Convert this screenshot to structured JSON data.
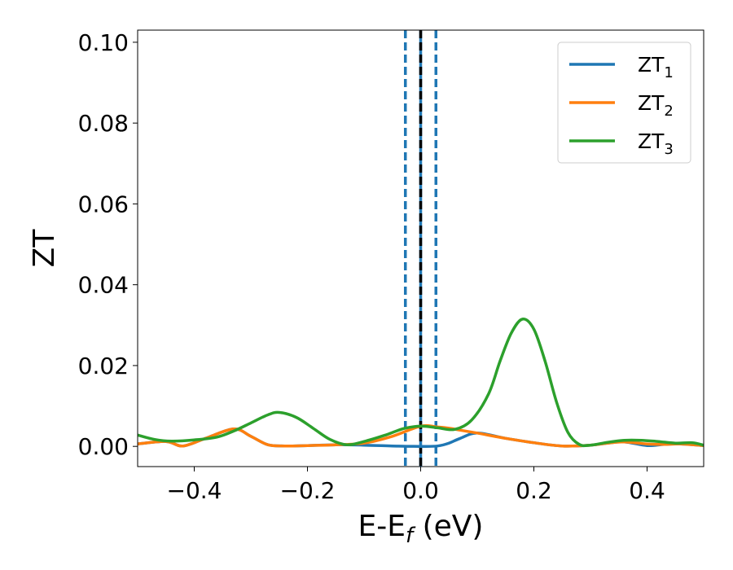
{
  "chart_data": {
    "type": "line",
    "xlabel": "E-E",
    "xlabel_sub": "f",
    "xlabel_unit": " (eV)",
    "ylabel": "ZT",
    "xlim": [
      -0.5,
      0.5
    ],
    "ylim": [
      -0.005,
      0.103
    ],
    "xticks": [
      -0.4,
      -0.2,
      0.0,
      0.2,
      0.4
    ],
    "xtick_labels": [
      "−0.4",
      "−0.2",
      "0.0",
      "0.2",
      "0.4"
    ],
    "yticks": [
      0.0,
      0.02,
      0.04,
      0.06,
      0.08,
      0.1
    ],
    "ytick_labels": [
      "0.00",
      "0.02",
      "0.04",
      "0.06",
      "0.08",
      "0.10"
    ],
    "grid": false,
    "legend_position": "top-right",
    "vertical_lines": [
      {
        "x": -0.027,
        "style": "dashed",
        "color": "#1f77b4"
      },
      {
        "x": 0.0,
        "style": "solid",
        "color": "#1f77b4"
      },
      {
        "x": 0.0,
        "style": "dashed",
        "color": "#000000"
      },
      {
        "x": 0.027,
        "style": "dashed",
        "color": "#1f77b4"
      }
    ],
    "series": [
      {
        "name": "ZT",
        "name_sub": "1",
        "color": "#1f77b4",
        "x": [
          -0.5,
          -0.45,
          -0.42,
          -0.38,
          -0.33,
          -0.3,
          -0.27,
          -0.24,
          -0.2,
          -0.15,
          -0.1,
          -0.05,
          0.0,
          0.03,
          0.05,
          0.07,
          0.1,
          0.15,
          0.2,
          0.25,
          0.3,
          0.33,
          0.36,
          0.4,
          0.43,
          0.46,
          0.5
        ],
        "y": [
          0.0006,
          0.0012,
          0.0001,
          0.002,
          0.0043,
          0.0025,
          0.0004,
          0.0001,
          0.0002,
          0.0004,
          0.0003,
          0.0001,
          0.0,
          0.0001,
          0.0008,
          0.002,
          0.0033,
          0.002,
          0.0009,
          0.0001,
          0.0003,
          0.0008,
          0.0011,
          0.0002,
          0.0005,
          0.0006,
          0.0002
        ]
      },
      {
        "name": "ZT",
        "name_sub": "2",
        "color": "#ff7f0e",
        "x": [
          -0.5,
          -0.45,
          -0.42,
          -0.38,
          -0.33,
          -0.3,
          -0.27,
          -0.24,
          -0.2,
          -0.15,
          -0.1,
          -0.05,
          0.0,
          0.03,
          0.05,
          0.07,
          0.1,
          0.15,
          0.2,
          0.25,
          0.3,
          0.33,
          0.36,
          0.4,
          0.43,
          0.46,
          0.5
        ],
        "y": [
          0.0006,
          0.0012,
          0.0001,
          0.002,
          0.0043,
          0.0025,
          0.0004,
          0.0001,
          0.0002,
          0.0004,
          0.0008,
          0.0025,
          0.005,
          0.0048,
          0.0045,
          0.004,
          0.0033,
          0.002,
          0.0009,
          0.0001,
          0.0003,
          0.0008,
          0.0011,
          0.0006,
          0.0005,
          0.0006,
          0.0002
        ]
      },
      {
        "name": "ZT",
        "name_sub": "3",
        "color": "#2ca02c",
        "x": [
          -0.5,
          -0.47,
          -0.44,
          -0.4,
          -0.36,
          -0.33,
          -0.3,
          -0.27,
          -0.25,
          -0.22,
          -0.19,
          -0.16,
          -0.13,
          -0.1,
          -0.06,
          -0.03,
          0.0,
          0.03,
          0.06,
          0.09,
          0.12,
          0.14,
          0.16,
          0.18,
          0.2,
          0.22,
          0.24,
          0.26,
          0.28,
          0.3,
          0.33,
          0.36,
          0.39,
          0.42,
          0.45,
          0.48,
          0.5
        ],
        "y": [
          0.0028,
          0.0017,
          0.0013,
          0.0016,
          0.0023,
          0.0038,
          0.0058,
          0.0078,
          0.0084,
          0.0072,
          0.0045,
          0.0017,
          0.0004,
          0.0012,
          0.0029,
          0.0044,
          0.005,
          0.0046,
          0.0042,
          0.0065,
          0.013,
          0.021,
          0.028,
          0.0315,
          0.029,
          0.021,
          0.011,
          0.0035,
          0.0005,
          0.0003,
          0.001,
          0.0015,
          0.0015,
          0.0012,
          0.0008,
          0.0009,
          0.0003
        ]
      }
    ]
  }
}
